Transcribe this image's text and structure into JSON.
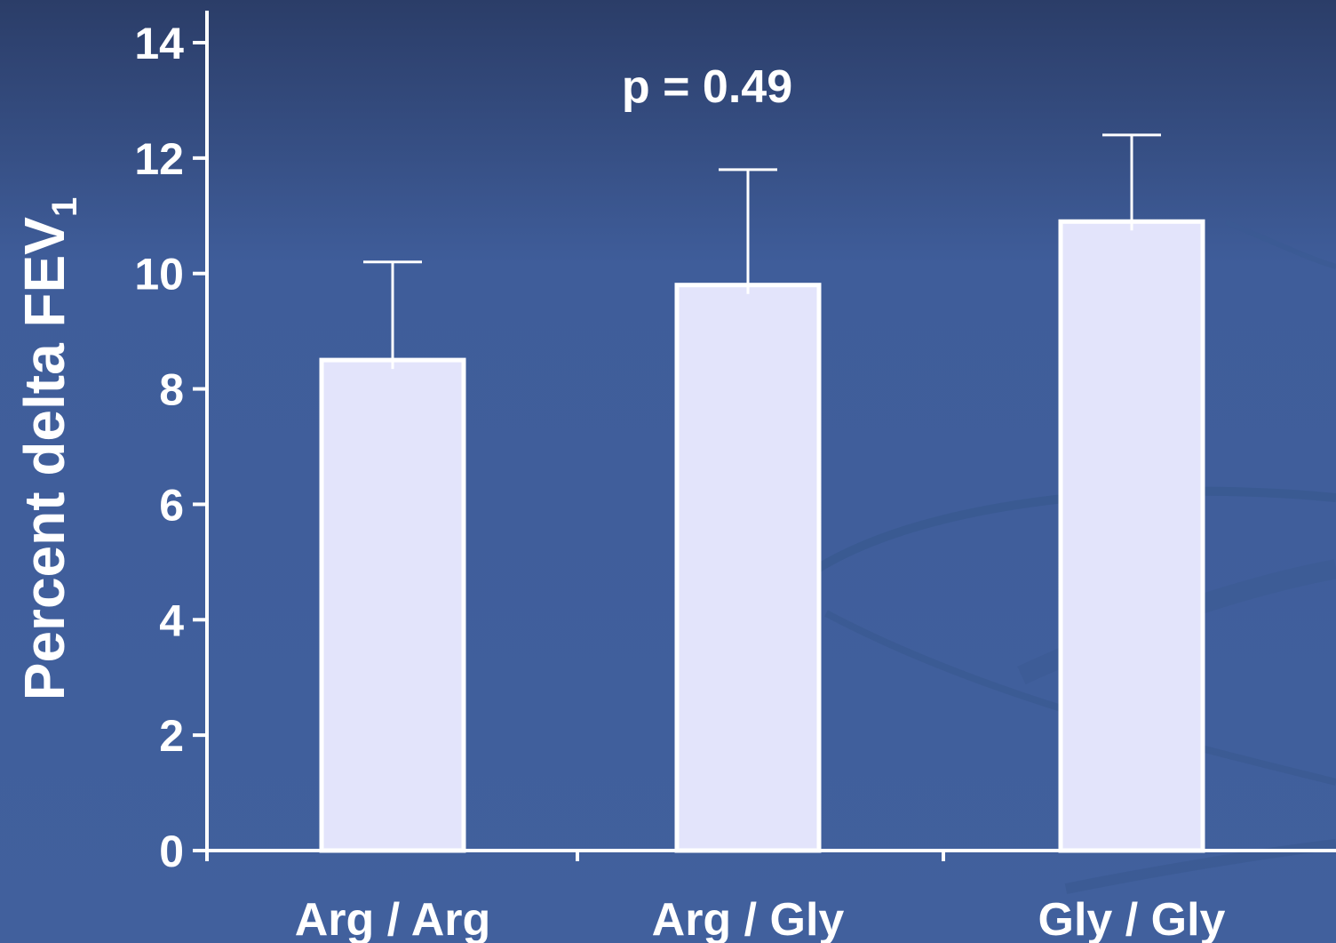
{
  "colors": {
    "background_top": "#2c3f6b",
    "background_main": "#405f9c",
    "bar_fill": "#e3e4fb",
    "bar_stroke": "#ffffff",
    "axis": "#ffffff",
    "text": "#ffffff"
  },
  "chart_data": {
    "type": "bar",
    "categories": [
      "Arg / Arg",
      "Arg / Gly",
      "Gly / Gly"
    ],
    "values": [
      8.5,
      9.8,
      10.9
    ],
    "error_upper": [
      10.2,
      11.8,
      12.4
    ],
    "ylabel_main": "Percent delta FEV",
    "ylabel_subscript": "1",
    "annotation": "p = 0.49",
    "ylim": [
      0,
      14
    ],
    "yticks": [
      0,
      2,
      4,
      6,
      8,
      10,
      12,
      14
    ],
    "ytick_labels": [
      "0",
      "2",
      "4",
      "6",
      "8",
      "10",
      "12",
      "14"
    ],
    "grid": false,
    "legend": "none"
  }
}
